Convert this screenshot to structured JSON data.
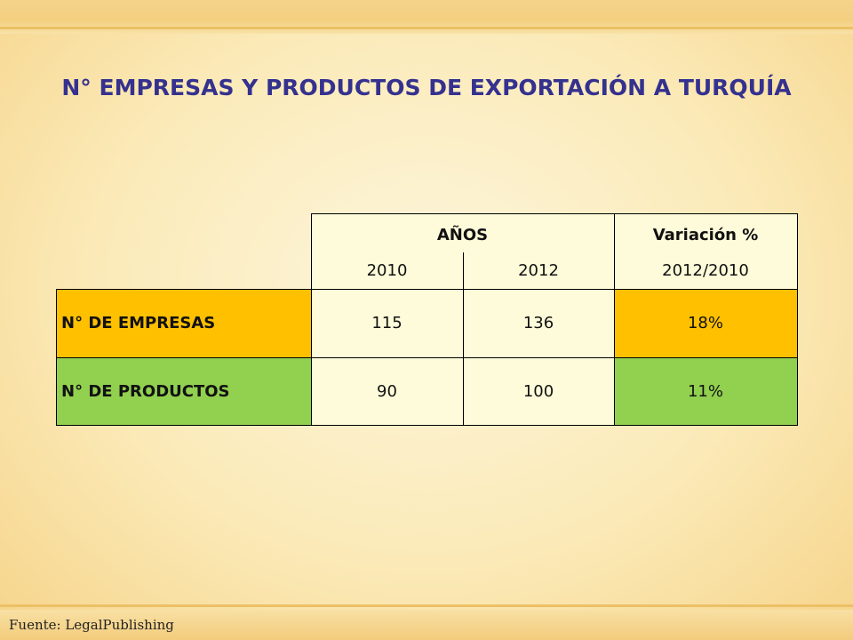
{
  "title": "N° EMPRESAS Y PRODUCTOS DE EXPORTACIÓN A TURQUÍA",
  "table": {
    "header_years": "AÑOS",
    "header_variation": "Variación %",
    "year_1": "2010",
    "year_2": "2012",
    "variation_period": "2012/2010",
    "rows": [
      {
        "label": "N° DE EMPRESAS",
        "v2010": "115",
        "v2012": "136",
        "variation": "18%"
      },
      {
        "label": "N° DE PRODUCTOS",
        "v2010": "90",
        "v2012": "100",
        "variation": "11%"
      }
    ]
  },
  "source": "Fuente: LegalPublishing",
  "colors": {
    "title": "#35318f",
    "header_bg": "#fdfbd9",
    "empresas_bg": "#ffc000",
    "productos_bg": "#92d050"
  }
}
